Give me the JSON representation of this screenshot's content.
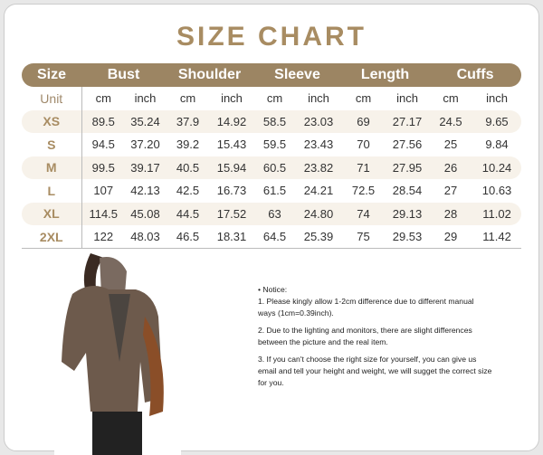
{
  "title": "SIZE CHART",
  "table": {
    "headers": [
      "Size",
      "Bust",
      "Shoulder",
      "Sleeve",
      "Length",
      "Cuffs"
    ],
    "unit_row": [
      "Unit",
      "cm",
      "inch",
      "cm",
      "inch",
      "cm",
      "inch",
      "cm",
      "inch",
      "cm",
      "inch"
    ],
    "rows": [
      [
        "XS",
        "89.5",
        "35.24",
        "37.9",
        "14.92",
        "58.5",
        "23.03",
        "69",
        "27.17",
        "24.5",
        "9.65"
      ],
      [
        "S",
        "94.5",
        "37.20",
        "39.2",
        "15.43",
        "59.5",
        "23.43",
        "70",
        "27.56",
        "25",
        "9.84"
      ],
      [
        "M",
        "99.5",
        "39.17",
        "40.5",
        "15.94",
        "60.5",
        "23.82",
        "71",
        "27.95",
        "26",
        "10.24"
      ],
      [
        "L",
        "107",
        "42.13",
        "42.5",
        "16.73",
        "61.5",
        "24.21",
        "72.5",
        "28.54",
        "27",
        "10.63"
      ],
      [
        "XL",
        "114.5",
        "45.08",
        "44.5",
        "17.52",
        "63",
        "24.80",
        "74",
        "29.13",
        "28",
        "11.02"
      ],
      [
        "2XL",
        "122",
        "48.03",
        "46.5",
        "18.31",
        "64.5",
        "25.39",
        "75",
        "29.53",
        "29",
        "11.42"
      ]
    ]
  },
  "notes": {
    "heading": "• Notice:",
    "items": [
      "1. Please kingly allow 1-2cm difference due to different manual ways (1cm=0.39inch).",
      "2. Due to the lighting and monitors, there are slight differences between the picture and the real item.",
      "3. If you can't choose the right size for yourself, you can give us email and tell your height and weight, we will sugget the correct size for you."
    ]
  },
  "colors": {
    "accent": "#9c8563",
    "title": "#a88c62",
    "row_shade": "#f7f2ea"
  }
}
